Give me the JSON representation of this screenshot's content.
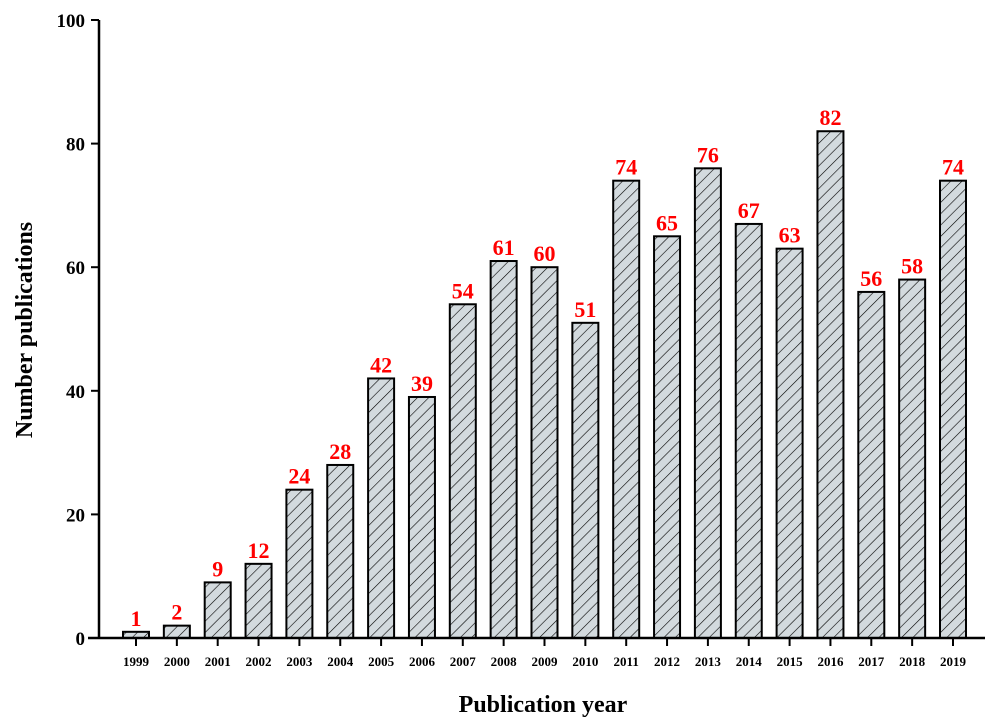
{
  "chart_data": {
    "type": "bar",
    "title": "",
    "xlabel": "Publication year",
    "ylabel": "Number publications",
    "categories": [
      "1999",
      "2000",
      "2001",
      "2002",
      "2003",
      "2004",
      "2005",
      "2006",
      "2007",
      "2008",
      "2009",
      "2010",
      "2011",
      "2012",
      "2013",
      "2014",
      "2015",
      "2016",
      "2017",
      "2018",
      "2019"
    ],
    "values": [
      1,
      2,
      9,
      12,
      24,
      28,
      42,
      39,
      54,
      61,
      60,
      51,
      74,
      65,
      76,
      67,
      63,
      82,
      56,
      58,
      74
    ],
    "ylim": [
      0,
      100
    ],
    "yticks": [
      0,
      20,
      40,
      60,
      80,
      100
    ],
    "grid": false,
    "bar_fill": "#d3dade",
    "bar_hatch": "diagonal",
    "bar_stroke": "#000000",
    "label_color": "#ff0000"
  }
}
